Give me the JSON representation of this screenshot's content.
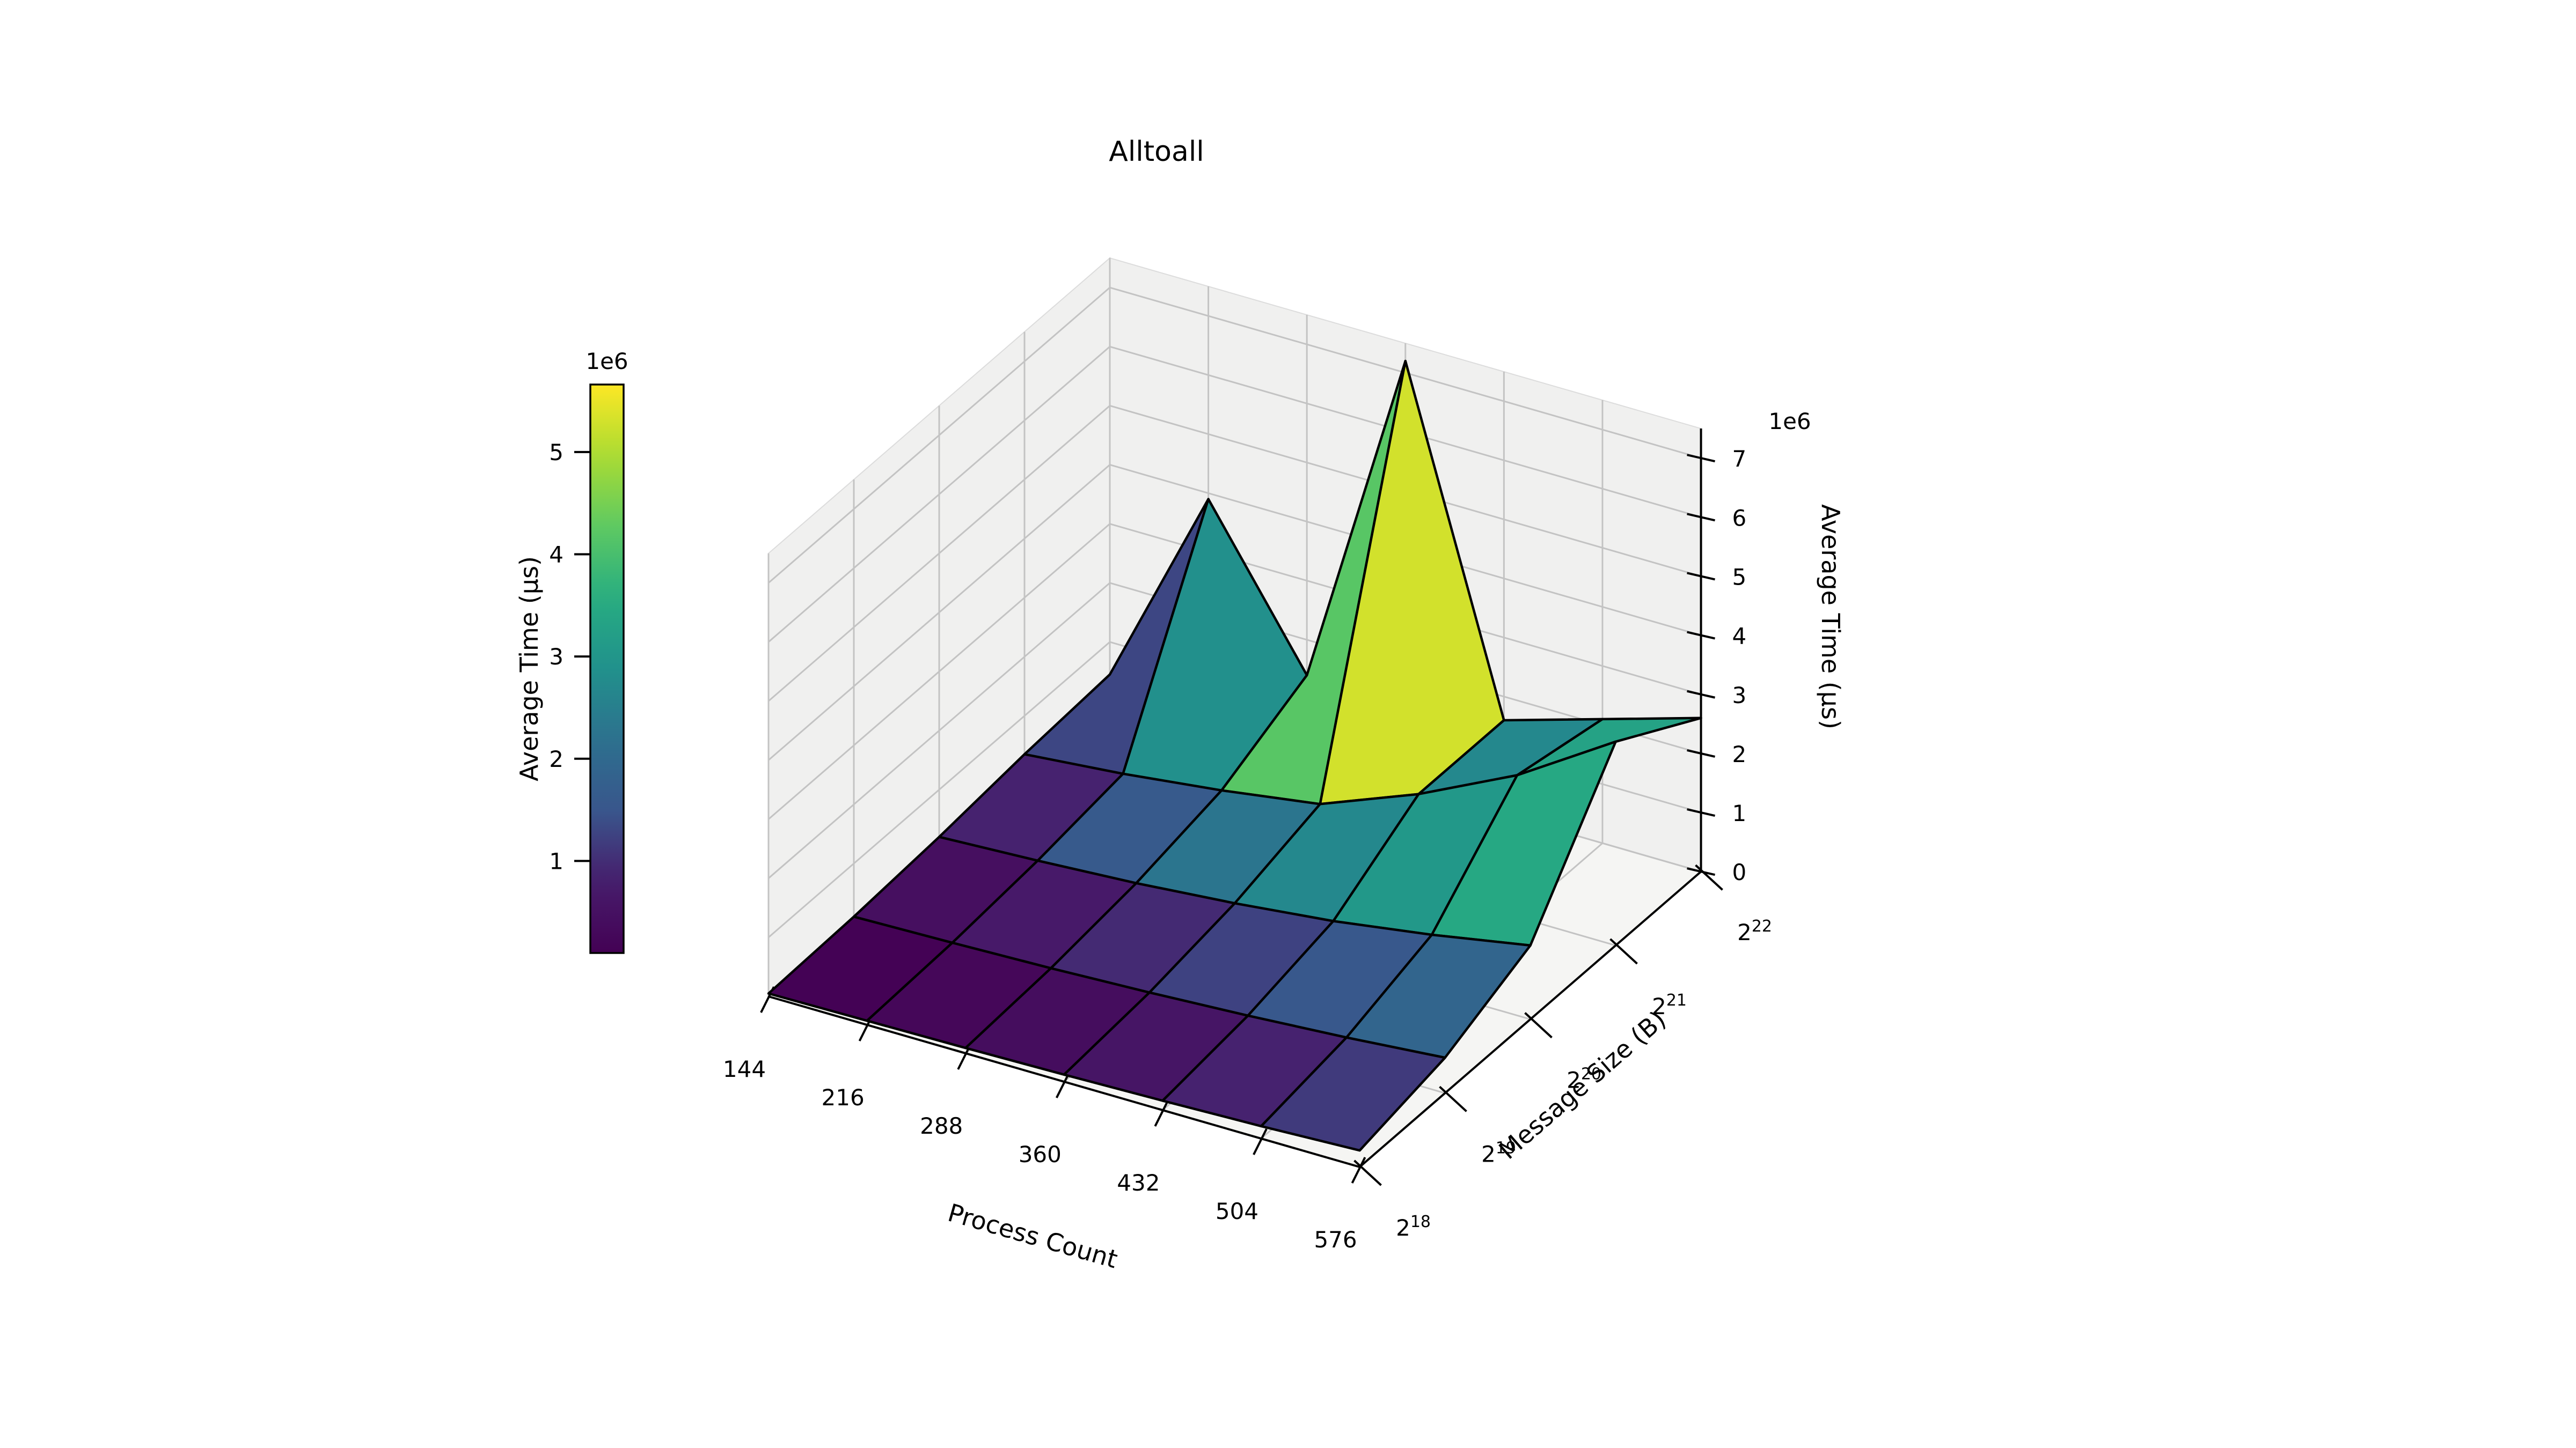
{
  "title": "Alltoall",
  "axes": {
    "x": {
      "label": "Process Count",
      "ticks": [
        "144",
        "216",
        "288",
        "360",
        "432",
        "504",
        "576"
      ]
    },
    "y": {
      "label": "Message Size (B)",
      "tick_base": "2",
      "tick_exponents": [
        "18",
        "19",
        "20",
        "21",
        "22"
      ]
    },
    "z": {
      "label": "Average Time (µs)",
      "ticks": [
        "0",
        "1",
        "2",
        "3",
        "4",
        "5",
        "6",
        "7"
      ],
      "offset_label": "1e6"
    }
  },
  "colorbar": {
    "label": "Average Time (µs)",
    "offset_label": "1e6",
    "ticks": [
      "1",
      "2",
      "3",
      "4",
      "5"
    ],
    "vmin_1e6": 0.1,
    "vmax_1e6": 5.66
  },
  "chart_data": {
    "type": "surface3d",
    "title": "Alltoall",
    "xlabel": "Process Count",
    "ylabel": "Message Size (B)",
    "zlabel": "Average Time (µs)",
    "x_values": [
      144,
      216,
      288,
      360,
      432,
      504,
      576
    ],
    "y_exponents": [
      18,
      19,
      20,
      21,
      22
    ],
    "z_unit": "1e6 microseconds",
    "z_grid_1e6": [
      [
        0.05,
        0.07,
        0.09,
        0.12,
        0.16,
        0.21,
        0.28
      ],
      [
        0.1,
        0.14,
        0.19,
        0.26,
        0.35,
        0.46,
        0.6
      ],
      [
        0.2,
        0.28,
        0.38,
        0.52,
        0.7,
        0.95,
        1.25
      ],
      [
        0.35,
        0.5,
        0.7,
        0.95,
        1.6,
        2.4,
        3.45
      ],
      [
        0.45,
        3.9,
        1.4,
        7.2,
        1.6,
        2.1,
        2.6
      ]
    ],
    "face_values_1e6": [
      [
        0.12,
        0.25,
        0.4,
        0.6,
        0.85,
        1.15
      ],
      [
        0.45,
        0.7,
        0.95,
        1.25,
        1.55,
        1.9
      ],
      [
        0.85,
        1.6,
        2.3,
        2.7,
        3.05,
        3.45
      ],
      [
        1.3,
        2.85,
        4.2,
        5.3,
        2.7,
        3.3
      ]
    ],
    "zlim_1e6": [
      0,
      7.5
    ],
    "grid": true,
    "colormap": "viridis",
    "view": {
      "elev": 30,
      "azim": -60,
      "projection": "ortho-approx"
    },
    "colors": {
      "pane_wall": "#f0f0ef",
      "pane_floor": "#f5f5f3",
      "grid_line": "#c3c3c3",
      "edge": "#000000",
      "viridis_stops": [
        "#440154",
        "#471d6c",
        "#39568c",
        "#2d708e",
        "#21918c",
        "#27ad81",
        "#5ec962",
        "#aadc32",
        "#fde725"
      ]
    }
  }
}
